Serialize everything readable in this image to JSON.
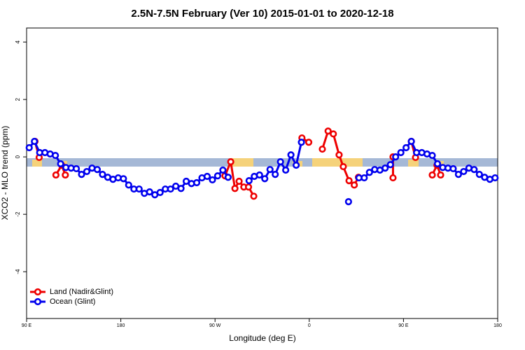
{
  "chart_data": {
    "type": "line",
    "title": "2.5N-7.5N February (Ver 10)   2015-01-01 to 2020-12-18",
    "xlabel": "Longitude (deg E)",
    "ylabel": "XCO2 - MLO trend (ppm)",
    "xlim": [
      90,
      540
    ],
    "ylim": [
      -5.63,
      4.49
    ],
    "xticks": [
      {
        "value": 90,
        "label": "90 E"
      },
      {
        "value": 180,
        "label": "180"
      },
      {
        "value": 270,
        "label": "90 W"
      },
      {
        "value": 360,
        "label": "0"
      },
      {
        "value": 450,
        "label": "90 E"
      },
      {
        "value": 540,
        "label": "180"
      }
    ],
    "yticks": [
      -4,
      -2,
      0,
      2,
      4
    ],
    "legend": "bottomleft",
    "series": [
      {
        "name": "Land (Nadir&Glint)",
        "color": "#ee0000",
        "x": [
          98,
          102,
          null,
          118,
          123.5,
          127,
          null,
          279.5,
          285,
          289,
          293,
          297.5,
          302,
          307,
          null,
          353,
          359.5,
          null,
          372.5,
          378,
          383,
          388.5,
          392.5,
          398,
          403,
          407,
          null,
          440,
          440,
          null,
          457.5,
          461.5,
          null,
          477.5,
          482,
          485.5
        ],
        "values": [
          0.54,
          -0.02,
          null,
          -0.63,
          -0.29,
          -0.63,
          null,
          -0.66,
          -0.17,
          -1.1,
          -0.85,
          -1.05,
          -1.05,
          -1.37,
          null,
          0.66,
          0.51,
          null,
          0.27,
          0.9,
          0.8,
          0.07,
          -0.34,
          -0.83,
          -0.98,
          -0.71,
          null,
          0,
          -0.73,
          null,
          0.54,
          -0.02,
          null,
          -0.63,
          -0.29,
          -0.63
        ]
      },
      {
        "name": "Ocean (Glint)",
        "color": "#0000ee",
        "x": [
          92.5,
          97.5,
          102.5,
          107.5,
          112.5,
          117.5,
          122.5,
          127.5,
          132.5,
          137.5,
          142.5,
          147.5,
          152.5,
          157.5,
          162.5,
          167.5,
          172.5,
          177.5,
          182.5,
          187.5,
          192.5,
          197.5,
          202.5,
          207.5,
          212.5,
          217.5,
          222.5,
          227.5,
          232.5,
          237.5,
          242.5,
          247.5,
          252.5,
          257.5,
          262.5,
          267.5,
          272.5,
          277.5,
          282.5,
          287.5,
          292.5,
          297.5,
          302.5,
          307.5,
          312.5,
          317.5,
          322.5,
          327.5,
          332.5,
          337.5,
          342.5,
          347.5,
          352.5,
          357.5,
          362.5,
          367.5,
          372.5,
          377.5,
          382.5,
          387.5,
          392.5,
          397.5,
          402.5,
          407.5,
          412.5,
          417.5,
          422.5,
          427.5,
          432.5,
          437.5,
          442.5,
          447.5,
          452.5,
          457.5,
          462.5,
          467.5,
          472.5,
          477.5,
          482.5,
          487.5,
          492.5,
          497.5,
          502.5,
          507.5,
          512.5,
          517.5,
          522.5,
          527.5,
          532.5,
          537.5
        ],
        "values": [
          0.32,
          0.54,
          0.15,
          0.15,
          0.1,
          0.05,
          -0.24,
          -0.37,
          -0.39,
          -0.41,
          -0.61,
          -0.51,
          -0.39,
          -0.44,
          -0.61,
          -0.71,
          -0.78,
          -0.73,
          -0.76,
          -0.98,
          -1.12,
          -1.12,
          -1.27,
          -1.22,
          -1.32,
          -1.24,
          -1.12,
          -1.12,
          -1.02,
          -1.1,
          -0.85,
          -0.93,
          -0.9,
          -0.73,
          -0.68,
          -0.8,
          -0.66,
          -0.46,
          -0.71,
          null,
          null,
          null,
          -0.83,
          -0.68,
          -0.63,
          -0.76,
          -0.44,
          -0.61,
          -0.17,
          -0.46,
          0.07,
          -0.29,
          0.51,
          null,
          null,
          null,
          null,
          null,
          null,
          null,
          null,
          -1.56,
          null,
          -0.73,
          -0.73,
          -0.54,
          -0.44,
          -0.46,
          -0.39,
          -0.27,
          0.0,
          0.15,
          0.32,
          0.54,
          0.15,
          0.15,
          0.1,
          0.05,
          -0.24,
          -0.37,
          -0.39,
          -0.41,
          -0.61,
          -0.51,
          -0.39,
          -0.44,
          -0.61,
          -0.71,
          -0.78,
          -0.73
        ]
      }
    ]
  }
}
